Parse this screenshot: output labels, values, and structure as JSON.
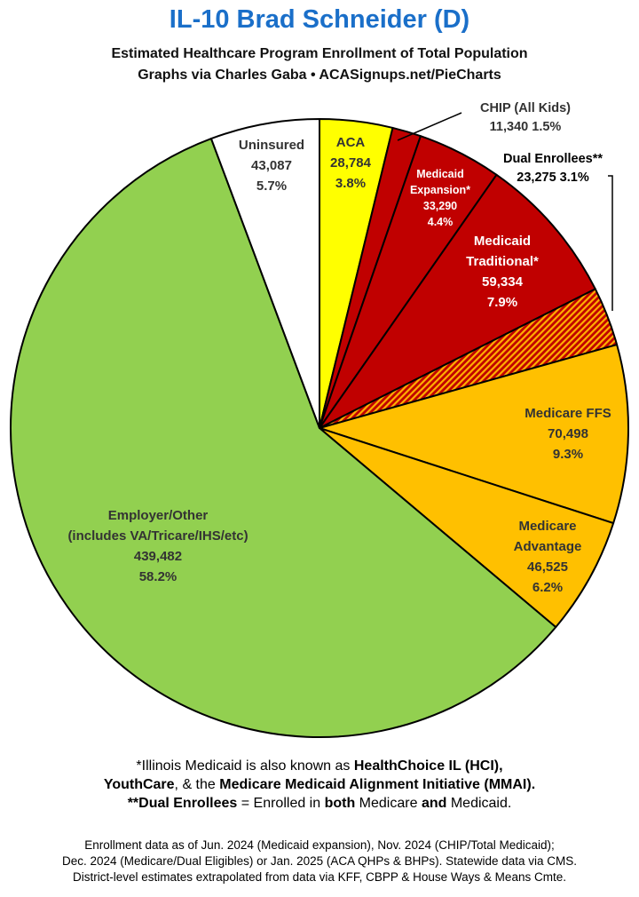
{
  "header": {
    "title": "IL-10 Brad Schneider (D)",
    "subtitle1": "Estimated Healthcare Program Enrollment of Total Population",
    "subtitle2": "Graphs via Charles Gaba   •   ACASignups.net/PieCharts"
  },
  "chart_data": {
    "type": "pie",
    "start_angle_deg": 0,
    "direction": "clockwise",
    "slices": [
      {
        "key": "aca",
        "lines": [
          "ACA",
          "28,784",
          "3.8%"
        ],
        "value": 28784,
        "percent": 3.8,
        "color": "#ffff00",
        "text_color": "#333333"
      },
      {
        "key": "chip",
        "lines": [
          "CHIP (All Kids)",
          "11,340 1.5%"
        ],
        "value": 11340,
        "percent": 1.5,
        "color": "#c00000",
        "text_color": "#333333"
      },
      {
        "key": "medicaid-expansion",
        "lines": [
          "Medicaid",
          "Expansion*",
          "33,290",
          "4.4%"
        ],
        "value": 33290,
        "percent": 4.4,
        "color": "#c00000",
        "text_color": "#ffffff"
      },
      {
        "key": "medicaid-traditional",
        "lines": [
          "Medicaid",
          "Traditional*",
          "59,334",
          "7.9%"
        ],
        "value": 59334,
        "percent": 7.9,
        "color": "#c00000",
        "text_color": "#ffffff"
      },
      {
        "key": "dual-enrollees",
        "lines": [
          "Dual Enrollees**",
          "23,275 3.1%"
        ],
        "value": 23275,
        "percent": 3.1,
        "color": "#c00000",
        "hatch": "#ffb000",
        "text_color": "#000000"
      },
      {
        "key": "medicare-ffs",
        "lines": [
          "Medicare FFS",
          "70,498",
          "9.3%"
        ],
        "value": 70498,
        "percent": 9.3,
        "color": "#ffc000",
        "text_color": "#333333"
      },
      {
        "key": "medicare-advantage",
        "lines": [
          "Medicare",
          "Advantage",
          "46,525",
          "6.2%"
        ],
        "value": 46525,
        "percent": 6.2,
        "color": "#ffc000",
        "text_color": "#333333"
      },
      {
        "key": "employer-other",
        "lines": [
          "Employer/Other",
          "(includes VA/Tricare/IHS/etc)",
          "439,482",
          "58.2%"
        ],
        "value": 439482,
        "percent": 58.2,
        "color": "#92d050",
        "text_color": "#333333"
      },
      {
        "key": "uninsured",
        "lines": [
          "Uninsured",
          "43,087",
          "5.7%"
        ],
        "value": 43087,
        "percent": 5.7,
        "color": "#ffffff",
        "text_color": "#333333"
      }
    ]
  },
  "notes": {
    "line1_a": "*Illinois Medicaid is also known as ",
    "line1_b": "HealthChoice IL (HCI),",
    "line2_a": "YouthCare",
    "line2_b": ", & the ",
    "line2_c": "Medicare Medicaid Alignment Initiative (MMAI).",
    "line3_a": "**Dual Enrollees",
    "line3_b": " = Enrolled in ",
    "line3_c": "both",
    "line3_d": " Medicare ",
    "line3_e": "and",
    "line3_f": " Medicaid."
  },
  "footer": {
    "line1": "Enrollment data as of Jun. 2024 (Medicaid expansion), Nov. 2024 (CHIP/Total Medicaid);",
    "line2": "Dec. 2024 (Medicare/Dual Eligibles) or Jan. 2025 (ACA QHPs & BHPs). Statewide data via CMS.",
    "line3": "District-level estimates extrapolated from data via KFF, CBPP & House Ways & Means Cmte."
  }
}
